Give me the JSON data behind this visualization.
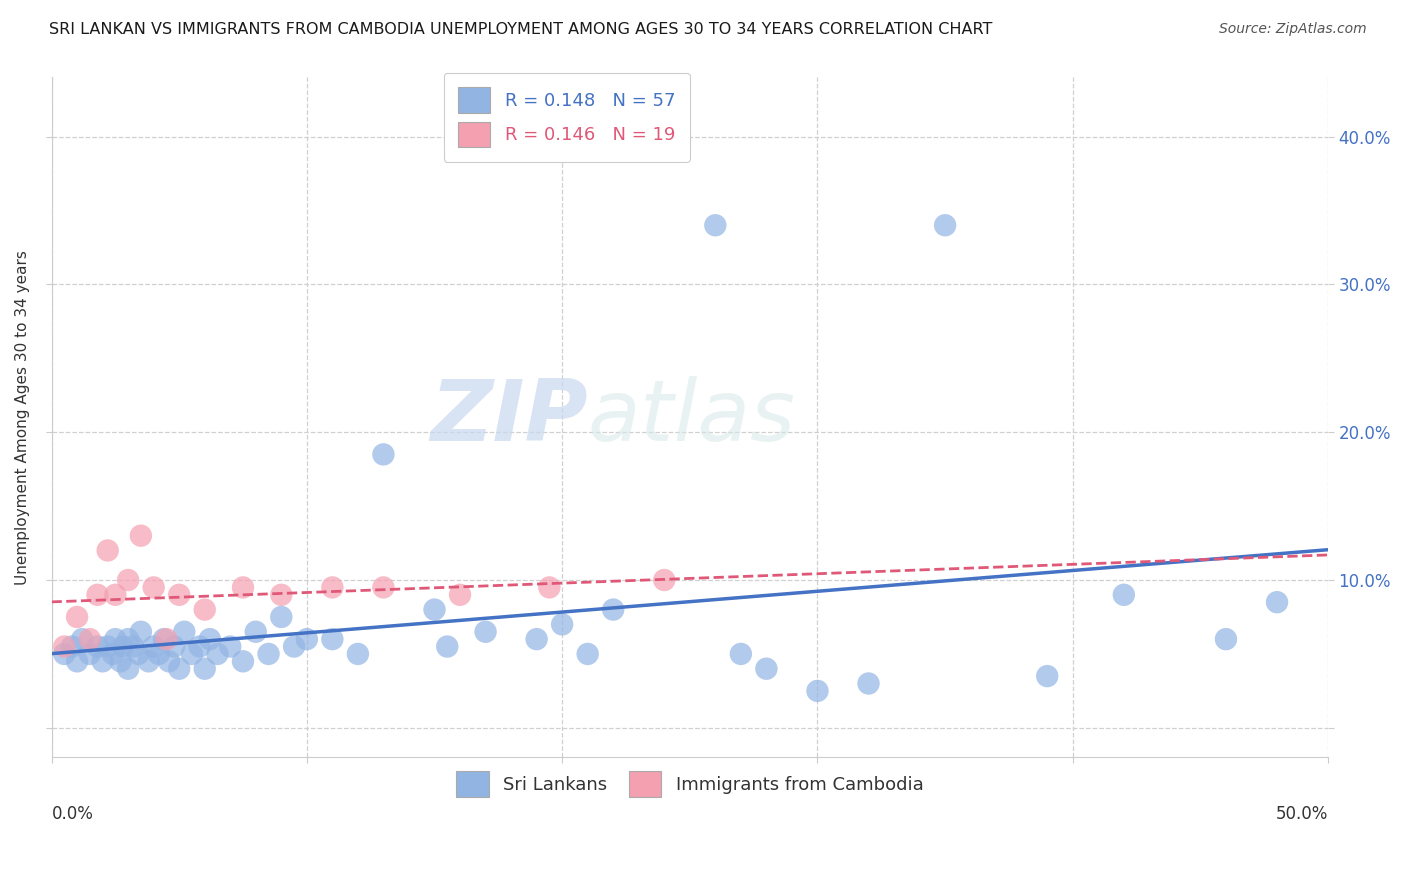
{
  "title": "SRI LANKAN VS IMMIGRANTS FROM CAMBODIA UNEMPLOYMENT AMONG AGES 30 TO 34 YEARS CORRELATION CHART",
  "source": "Source: ZipAtlas.com",
  "ylabel": "Unemployment Among Ages 30 to 34 years",
  "xlim": [
    0.0,
    0.5
  ],
  "ylim": [
    -0.02,
    0.44
  ],
  "x_ticks": [
    0.0,
    0.1,
    0.2,
    0.3,
    0.4,
    0.5
  ],
  "y_ticks": [
    0.0,
    0.1,
    0.2,
    0.3,
    0.4
  ],
  "y_tick_labels": [
    "",
    "10.0%",
    "20.0%",
    "30.0%",
    "40.0%"
  ],
  "sri_lankans_color": "#92b4e3",
  "cambodia_color": "#f4a0b0",
  "sri_lankans_line_color": "#4472c4",
  "cambodia_line_color": "#e05878",
  "right_axis_label_color": "#4472c4",
  "legend_R_sri": "R = 0.148",
  "legend_N_sri": "N = 57",
  "legend_R_cam": "R = 0.146",
  "legend_N_cam": "N = 19",
  "watermark_text": "ZIPatlas",
  "grid_color": "#d0d0d0",
  "background_color": "#ffffff",
  "sri_lankans_scatter_x": [
    0.005,
    0.008,
    0.01,
    0.012,
    0.015,
    0.018,
    0.02,
    0.022,
    0.024,
    0.025,
    0.027,
    0.028,
    0.03,
    0.03,
    0.032,
    0.034,
    0.035,
    0.038,
    0.04,
    0.042,
    0.044,
    0.046,
    0.048,
    0.05,
    0.052,
    0.055,
    0.058,
    0.06,
    0.062,
    0.065,
    0.07,
    0.075,
    0.08,
    0.085,
    0.09,
    0.095,
    0.1,
    0.11,
    0.12,
    0.13,
    0.15,
    0.155,
    0.17,
    0.19,
    0.2,
    0.21,
    0.22,
    0.26,
    0.27,
    0.28,
    0.3,
    0.32,
    0.35,
    0.39,
    0.42,
    0.46,
    0.48
  ],
  "sri_lankans_scatter_y": [
    0.05,
    0.055,
    0.045,
    0.06,
    0.05,
    0.055,
    0.045,
    0.055,
    0.05,
    0.06,
    0.045,
    0.055,
    0.04,
    0.06,
    0.055,
    0.05,
    0.065,
    0.045,
    0.055,
    0.05,
    0.06,
    0.045,
    0.055,
    0.04,
    0.065,
    0.05,
    0.055,
    0.04,
    0.06,
    0.05,
    0.055,
    0.045,
    0.065,
    0.05,
    0.075,
    0.055,
    0.06,
    0.06,
    0.05,
    0.185,
    0.08,
    0.055,
    0.065,
    0.06,
    0.07,
    0.05,
    0.08,
    0.34,
    0.05,
    0.04,
    0.025,
    0.03,
    0.34,
    0.035,
    0.09,
    0.06,
    0.085
  ],
  "cambodia_scatter_x": [
    0.005,
    0.01,
    0.015,
    0.018,
    0.022,
    0.025,
    0.03,
    0.035,
    0.04,
    0.045,
    0.05,
    0.06,
    0.075,
    0.09,
    0.11,
    0.13,
    0.16,
    0.195,
    0.24
  ],
  "cambodia_scatter_y": [
    0.055,
    0.075,
    0.06,
    0.09,
    0.12,
    0.09,
    0.1,
    0.13,
    0.095,
    0.06,
    0.09,
    0.08,
    0.095,
    0.09,
    0.095,
    0.095,
    0.09,
    0.095,
    0.1
  ]
}
